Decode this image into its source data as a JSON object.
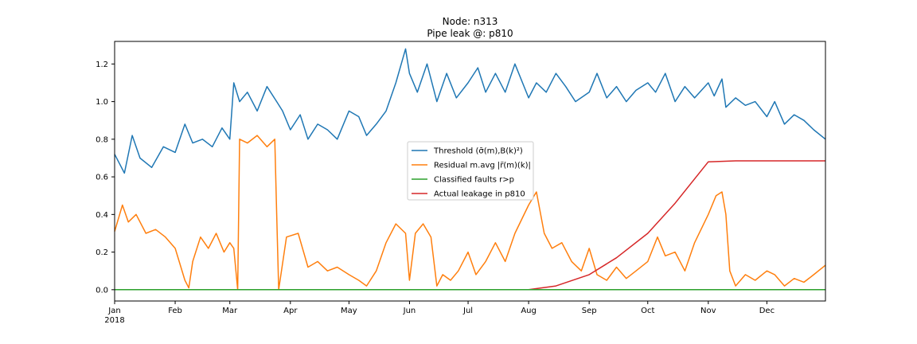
{
  "chart_data": {
    "type": "line",
    "title": "Node: n313",
    "subtitle": "Pipe leak @: p810",
    "xlabel": "",
    "ylabel": "",
    "x_range": [
      "2018-01-01",
      "2018-12-31"
    ],
    "ylim": [
      -0.06,
      1.32
    ],
    "y_ticks": [
      0.0,
      0.2,
      0.4,
      0.6,
      0.8,
      1.0,
      1.2
    ],
    "y_tick_labels": [
      "0.0",
      "0.2",
      "0.4",
      "0.6",
      "0.8",
      "1.0",
      "1.2"
    ],
    "x_ticks": [
      "2018-01-01",
      "2018-02-01",
      "2018-03-01",
      "2018-04-01",
      "2018-05-01",
      "2018-06-01",
      "2018-07-01",
      "2018-08-01",
      "2018-09-01",
      "2018-10-01",
      "2018-11-01",
      "2018-12-01"
    ],
    "x_tick_labels": [
      "Jan",
      "Feb",
      "Mar",
      "Apr",
      "May",
      "Jun",
      "Jul",
      "Aug",
      "Sep",
      "Oct",
      "Nov",
      "Dec"
    ],
    "x_year_label": "2018",
    "grid": false,
    "legend_position": "center",
    "series": [
      {
        "name": "Threshold (σ̄(m),B(k)²)",
        "color": "#1f77b4",
        "x": [
          "2018-01-01",
          "2018-01-06",
          "2018-01-10",
          "2018-01-14",
          "2018-01-20",
          "2018-01-26",
          "2018-02-01",
          "2018-02-06",
          "2018-02-10",
          "2018-02-15",
          "2018-02-20",
          "2018-02-25",
          "2018-03-01",
          "2018-03-03",
          "2018-03-06",
          "2018-03-10",
          "2018-03-15",
          "2018-03-20",
          "2018-03-25",
          "2018-03-28",
          "2018-04-01",
          "2018-04-06",
          "2018-04-10",
          "2018-04-15",
          "2018-04-20",
          "2018-04-25",
          "2018-05-01",
          "2018-05-06",
          "2018-05-10",
          "2018-05-15",
          "2018-05-20",
          "2018-05-25",
          "2018-05-30",
          "2018-06-01",
          "2018-06-05",
          "2018-06-10",
          "2018-06-15",
          "2018-06-20",
          "2018-06-25",
          "2018-07-01",
          "2018-07-06",
          "2018-07-10",
          "2018-07-15",
          "2018-07-20",
          "2018-07-25",
          "2018-08-01",
          "2018-08-05",
          "2018-08-10",
          "2018-08-15",
          "2018-08-20",
          "2018-08-25",
          "2018-09-01",
          "2018-09-05",
          "2018-09-10",
          "2018-09-15",
          "2018-09-20",
          "2018-09-25",
          "2018-10-01",
          "2018-10-05",
          "2018-10-10",
          "2018-10-15",
          "2018-10-20",
          "2018-10-25",
          "2018-11-01",
          "2018-11-04",
          "2018-11-08",
          "2018-11-10",
          "2018-11-15",
          "2018-11-20",
          "2018-11-25",
          "2018-12-01",
          "2018-12-05",
          "2018-12-10",
          "2018-12-15",
          "2018-12-20",
          "2018-12-25",
          "2018-12-31"
        ],
        "y": [
          0.72,
          0.62,
          0.82,
          0.7,
          0.65,
          0.76,
          0.73,
          0.88,
          0.78,
          0.8,
          0.76,
          0.86,
          0.8,
          1.1,
          1.0,
          1.05,
          0.95,
          1.08,
          1.0,
          0.95,
          0.85,
          0.93,
          0.8,
          0.88,
          0.85,
          0.8,
          0.95,
          0.92,
          0.82,
          0.88,
          0.95,
          1.1,
          1.28,
          1.15,
          1.05,
          1.2,
          1.0,
          1.15,
          1.02,
          1.1,
          1.18,
          1.05,
          1.15,
          1.05,
          1.2,
          1.02,
          1.1,
          1.05,
          1.15,
          1.08,
          1.0,
          1.05,
          1.15,
          1.02,
          1.08,
          1.0,
          1.06,
          1.1,
          1.05,
          1.15,
          1.0,
          1.08,
          1.02,
          1.1,
          1.03,
          1.12,
          0.97,
          1.02,
          0.98,
          1.0,
          0.92,
          1.0,
          0.88,
          0.93,
          0.9,
          0.85,
          0.8
        ]
      },
      {
        "name": "Residual m.avg |r̃(m)(k)|",
        "color": "#ff7f0e",
        "x": [
          "2018-01-01",
          "2018-01-05",
          "2018-01-08",
          "2018-01-12",
          "2018-01-17",
          "2018-01-22",
          "2018-01-27",
          "2018-02-01",
          "2018-02-06",
          "2018-02-08",
          "2018-02-10",
          "2018-02-14",
          "2018-02-18",
          "2018-02-22",
          "2018-02-26",
          "2018-03-01",
          "2018-03-03",
          "2018-03-05",
          "2018-03-06",
          "2018-03-10",
          "2018-03-15",
          "2018-03-20",
          "2018-03-24",
          "2018-03-25",
          "2018-03-26",
          "2018-03-30",
          "2018-04-05",
          "2018-04-10",
          "2018-04-15",
          "2018-04-20",
          "2018-04-25",
          "2018-05-01",
          "2018-05-06",
          "2018-05-10",
          "2018-05-15",
          "2018-05-20",
          "2018-05-25",
          "2018-05-30",
          "2018-06-01",
          "2018-06-04",
          "2018-06-08",
          "2018-06-12",
          "2018-06-15",
          "2018-06-18",
          "2018-06-22",
          "2018-06-26",
          "2018-07-01",
          "2018-07-05",
          "2018-07-10",
          "2018-07-15",
          "2018-07-20",
          "2018-07-25",
          "2018-08-01",
          "2018-08-05",
          "2018-08-09",
          "2018-08-13",
          "2018-08-18",
          "2018-08-23",
          "2018-08-28",
          "2018-09-01",
          "2018-09-05",
          "2018-09-10",
          "2018-09-15",
          "2018-09-20",
          "2018-09-25",
          "2018-10-01",
          "2018-10-06",
          "2018-10-10",
          "2018-10-15",
          "2018-10-20",
          "2018-10-25",
          "2018-11-01",
          "2018-11-05",
          "2018-11-08",
          "2018-11-10",
          "2018-11-12",
          "2018-11-15",
          "2018-11-20",
          "2018-11-25",
          "2018-12-01",
          "2018-12-05",
          "2018-12-10",
          "2018-12-15",
          "2018-12-20",
          "2018-12-25",
          "2018-12-31"
        ],
        "y": [
          0.31,
          0.45,
          0.36,
          0.4,
          0.3,
          0.32,
          0.28,
          0.22,
          0.05,
          0.01,
          0.15,
          0.28,
          0.22,
          0.3,
          0.2,
          0.25,
          0.22,
          0.0,
          0.8,
          0.78,
          0.82,
          0.76,
          0.8,
          0.4,
          0.0,
          0.28,
          0.3,
          0.12,
          0.15,
          0.1,
          0.12,
          0.08,
          0.05,
          0.02,
          0.1,
          0.25,
          0.35,
          0.3,
          0.05,
          0.3,
          0.35,
          0.28,
          0.02,
          0.08,
          0.05,
          0.1,
          0.2,
          0.08,
          0.15,
          0.25,
          0.15,
          0.3,
          0.45,
          0.52,
          0.3,
          0.22,
          0.25,
          0.15,
          0.1,
          0.22,
          0.08,
          0.05,
          0.12,
          0.06,
          0.1,
          0.15,
          0.28,
          0.18,
          0.2,
          0.1,
          0.25,
          0.4,
          0.5,
          0.52,
          0.4,
          0.1,
          0.02,
          0.08,
          0.05,
          0.1,
          0.08,
          0.02,
          0.06,
          0.04,
          0.08,
          0.13
        ]
      },
      {
        "name": "Classified faults r>p",
        "color": "#2ca02c",
        "x": [
          "2018-01-01",
          "2018-08-01",
          "2018-12-31"
        ],
        "y": [
          0.0,
          0.0,
          0.0
        ]
      },
      {
        "name": "Actual leakage in p810",
        "color": "#d62728",
        "x": [
          "2018-01-01",
          "2018-08-01",
          "2018-08-15",
          "2018-09-01",
          "2018-09-15",
          "2018-10-01",
          "2018-10-15",
          "2018-11-01",
          "2018-11-15",
          "2018-12-01",
          "2018-12-31"
        ],
        "y": [
          0.0,
          0.0,
          0.02,
          0.08,
          0.17,
          0.3,
          0.46,
          0.68,
          0.685,
          0.685,
          0.685
        ]
      }
    ]
  }
}
